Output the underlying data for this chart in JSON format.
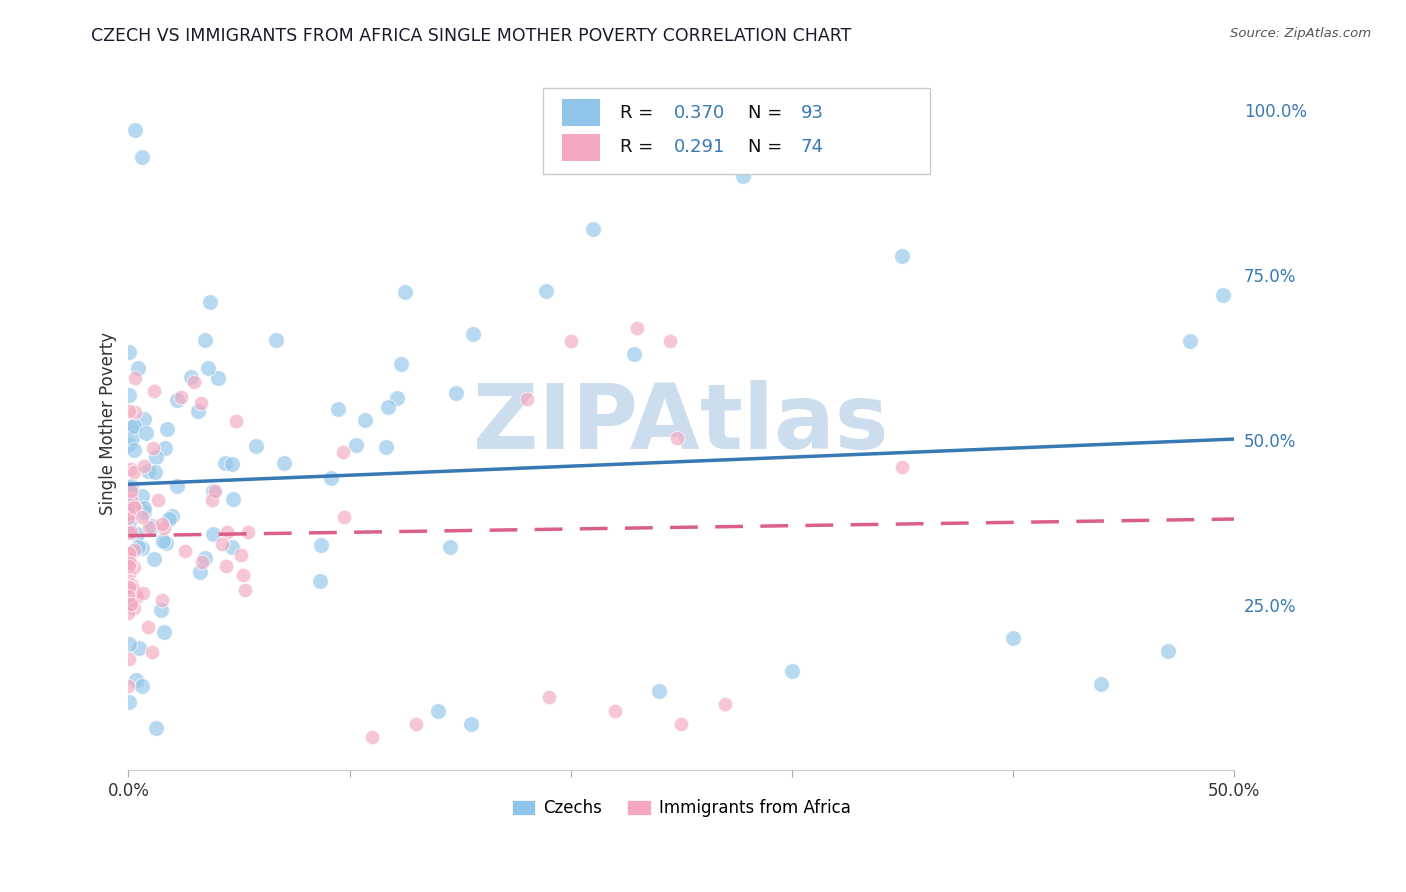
{
  "title": "CZECH VS IMMIGRANTS FROM AFRICA SINGLE MOTHER POVERTY CORRELATION CHART",
  "source": "Source: ZipAtlas.com",
  "ylabel": "Single Mother Poverty",
  "ytick_labels": [
    "25.0%",
    "50.0%",
    "75.0%",
    "100.0%"
  ],
  "ytick_values": [
    0.25,
    0.5,
    0.75,
    1.0
  ],
  "xlim": [
    0.0,
    0.5
  ],
  "ylim": [
    0.0,
    1.05
  ],
  "legend_labels": [
    "Czechs",
    "Immigrants from Africa"
  ],
  "r_czech": 0.37,
  "n_czech": 93,
  "r_africa": 0.291,
  "n_africa": 74,
  "blue_scatter_color": "#90c4e8",
  "pink_scatter_color": "#f4a8bf",
  "blue_line_color": "#3878b4",
  "pink_line_color": "#d95f8a",
  "background_color": "#ffffff",
  "watermark_text": "ZIPAtlas",
  "watermark_color": "#ccdded"
}
